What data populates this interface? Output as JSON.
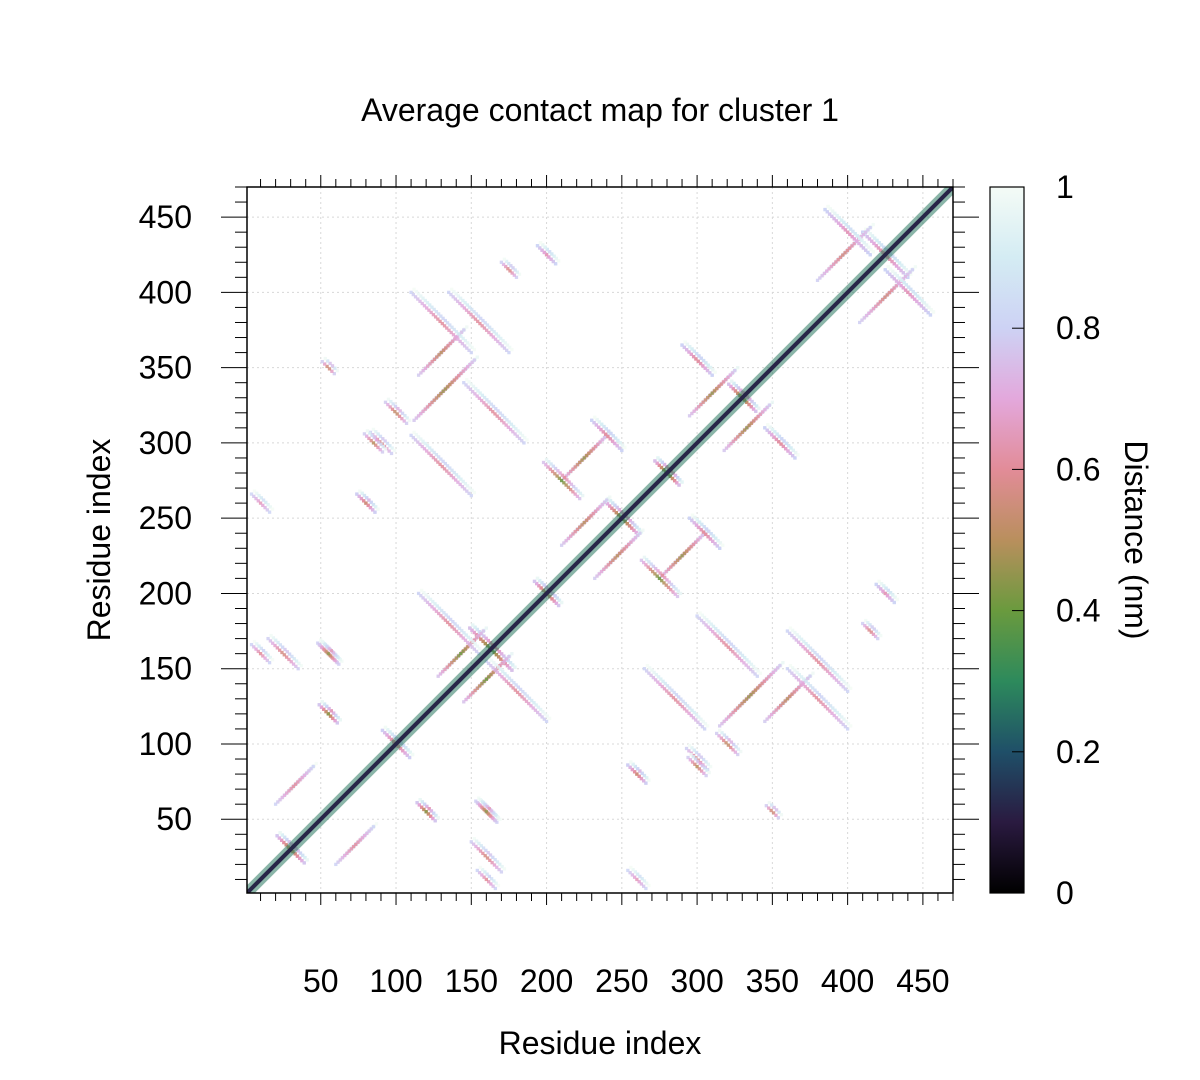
{
  "chart_data": {
    "type": "heatmap",
    "title": "Average contact map for cluster 1",
    "xlabel": "Residue index",
    "ylabel": "Residue index",
    "colorbar_label": "Distance (nm)",
    "xlim": [
      1,
      470
    ],
    "ylim": [
      1,
      470
    ],
    "x_ticks": [
      50,
      100,
      150,
      200,
      250,
      300,
      350,
      400,
      450
    ],
    "x_tick_labels": [
      "50",
      "100",
      "150",
      "200",
      "250",
      "300",
      "350",
      "400",
      "450"
    ],
    "y_ticks": [
      50,
      100,
      150,
      200,
      250,
      300,
      350,
      400,
      450
    ],
    "y_tick_labels": [
      "50",
      "100",
      "150",
      "200",
      "250",
      "300",
      "350",
      "400",
      "450"
    ],
    "colorbar_range": [
      0,
      1
    ],
    "colorbar_ticks": [
      0,
      0.2,
      0.4,
      0.6,
      0.8,
      1
    ],
    "colorbar_tick_labels": [
      "0",
      "0.2",
      "0.4",
      "0.6",
      "0.8",
      "1"
    ],
    "colormap": [
      {
        "v": 0.0,
        "color": "#000000"
      },
      {
        "v": 0.1,
        "color": "#2a1a40"
      },
      {
        "v": 0.2,
        "color": "#1f4f68"
      },
      {
        "v": 0.3,
        "color": "#2d8a5c"
      },
      {
        "v": 0.4,
        "color": "#6a9a3e"
      },
      {
        "v": 0.5,
        "color": "#b98f5d"
      },
      {
        "v": 0.6,
        "color": "#e28c98"
      },
      {
        "v": 0.7,
        "color": "#e3a8dc"
      },
      {
        "v": 0.8,
        "color": "#cdd2f4"
      },
      {
        "v": 0.9,
        "color": "#d4ecf3"
      },
      {
        "v": 1.0,
        "color": "#f4fbf6"
      }
    ],
    "grid": true,
    "diagonal": {
      "start": 1,
      "end": 470,
      "value": 0.12
    },
    "features": [
      {
        "kind": "anti",
        "cx": 30,
        "cy": 30,
        "len": 18,
        "value": 0.45
      },
      {
        "kind": "anti",
        "cx": 100,
        "cy": 100,
        "len": 18,
        "value": 0.55
      },
      {
        "kind": "anti",
        "cx": 163,
        "cy": 163,
        "len": 28,
        "value": 0.38
      },
      {
        "kind": "anti",
        "cx": 200,
        "cy": 200,
        "len": 16,
        "value": 0.45
      },
      {
        "kind": "anti",
        "cx": 250,
        "cy": 250,
        "len": 22,
        "value": 0.4
      },
      {
        "kind": "anti",
        "cx": 280,
        "cy": 280,
        "len": 16,
        "value": 0.35
      },
      {
        "kind": "anti",
        "cx": 330,
        "cy": 330,
        "len": 18,
        "value": 0.4
      },
      {
        "kind": "anti",
        "cx": 425,
        "cy": 425,
        "len": 30,
        "value": 0.6
      },
      {
        "kind": "par",
        "x": 128,
        "y": 145,
        "len": 30,
        "value": 0.4
      },
      {
        "kind": "par",
        "x": 210,
        "y": 232,
        "len": 30,
        "value": 0.5
      },
      {
        "kind": "par",
        "x": 295,
        "y": 318,
        "len": 30,
        "value": 0.45
      },
      {
        "kind": "par",
        "x": 380,
        "y": 408,
        "len": 35,
        "value": 0.55
      },
      {
        "kind": "par",
        "x": 20,
        "y": 60,
        "len": 25,
        "value": 0.6
      },
      {
        "kind": "par",
        "x": 315,
        "y": 112,
        "len": 40,
        "value": 0.45
      },
      {
        "kind": "par",
        "x": 115,
        "y": 345,
        "len": 30,
        "value": 0.5
      },
      {
        "kind": "par",
        "x": 210,
        "y": 275,
        "len": 30,
        "value": 0.45
      },
      {
        "kind": "anti",
        "cx": 275,
        "cy": 210,
        "len": 24,
        "value": 0.4
      },
      {
        "kind": "anti",
        "cx": 160,
        "cy": 25,
        "len": 20,
        "value": 0.55
      },
      {
        "kind": "anti",
        "cx": 55,
        "cy": 160,
        "len": 14,
        "value": 0.55
      },
      {
        "kind": "anti",
        "cx": 180,
        "cy": 135,
        "len": 40,
        "value": 0.6
      },
      {
        "kind": "anti",
        "cx": 130,
        "cy": 285,
        "len": 40,
        "value": 0.6
      },
      {
        "kind": "anti",
        "cx": 155,
        "cy": 380,
        "len": 40,
        "value": 0.6
      },
      {
        "kind": "anti",
        "cx": 320,
        "cy": 165,
        "len": 40,
        "value": 0.6
      },
      {
        "kind": "anti",
        "cx": 380,
        "cy": 130,
        "len": 40,
        "value": 0.6
      },
      {
        "kind": "anti",
        "cx": 90,
        "cy": 300,
        "len": 14,
        "value": 0.55
      },
      {
        "kind": "anti",
        "cx": 100,
        "cy": 320,
        "len": 14,
        "value": 0.5
      },
      {
        "kind": "anti",
        "cx": 355,
        "cy": 300,
        "len": 20,
        "value": 0.6
      },
      {
        "kind": "anti",
        "cx": 300,
        "cy": 355,
        "len": 20,
        "value": 0.6
      },
      {
        "kind": "anti",
        "cx": 240,
        "cy": 305,
        "len": 20,
        "value": 0.6
      },
      {
        "kind": "anti",
        "cx": 305,
        "cy": 240,
        "len": 20,
        "value": 0.6
      },
      {
        "kind": "anti",
        "cx": 440,
        "cy": 400,
        "len": 30,
        "value": 0.65
      },
      {
        "kind": "anti",
        "cx": 400,
        "cy": 440,
        "len": 30,
        "value": 0.65
      },
      {
        "kind": "anti",
        "cx": 200,
        "cy": 425,
        "len": 12,
        "value": 0.65
      },
      {
        "kind": "anti",
        "cx": 425,
        "cy": 200,
        "len": 12,
        "value": 0.65
      },
      {
        "kind": "anti",
        "cx": 260,
        "cy": 80,
        "len": 12,
        "value": 0.55
      },
      {
        "kind": "anti",
        "cx": 80,
        "cy": 260,
        "len": 12,
        "value": 0.55
      },
      {
        "kind": "anti",
        "cx": 55,
        "cy": 120,
        "len": 12,
        "value": 0.45
      },
      {
        "kind": "anti",
        "cx": 120,
        "cy": 55,
        "len": 12,
        "value": 0.45
      },
      {
        "kind": "anti",
        "cx": 10,
        "cy": 160,
        "len": 12,
        "value": 0.6
      },
      {
        "kind": "anti",
        "cx": 10,
        "cy": 260,
        "len": 12,
        "value": 0.65
      },
      {
        "kind": "anti",
        "cx": 160,
        "cy": 55,
        "len": 12,
        "value": 0.45
      },
      {
        "kind": "anti",
        "cx": 300,
        "cy": 85,
        "len": 12,
        "value": 0.5
      },
      {
        "kind": "anti",
        "cx": 415,
        "cy": 175,
        "len": 10,
        "value": 0.55
      },
      {
        "kind": "anti",
        "cx": 350,
        "cy": 55,
        "len": 8,
        "value": 0.5
      }
    ]
  }
}
